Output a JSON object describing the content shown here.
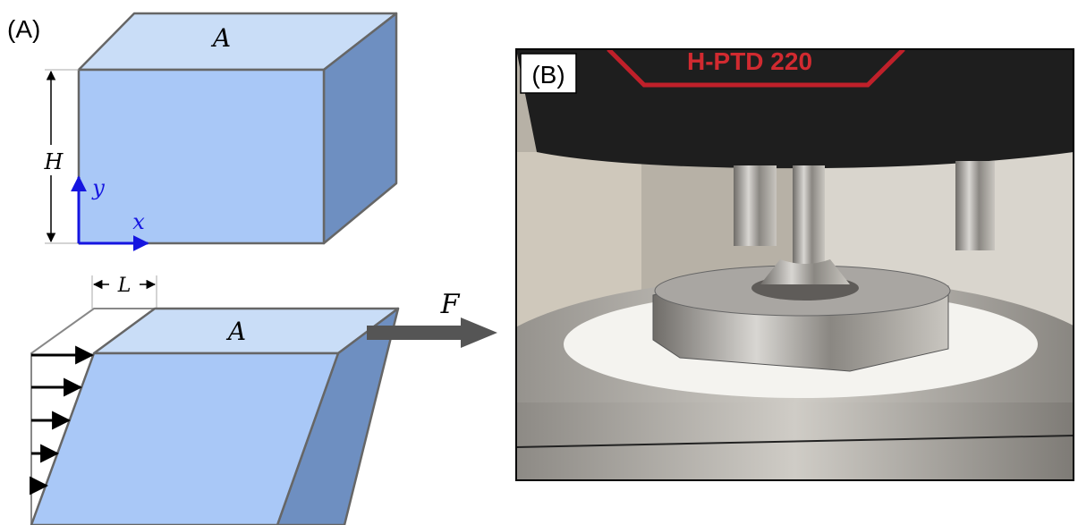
{
  "panel_a": {
    "label": "(A)",
    "top_face_label": "A",
    "height_label": "H",
    "y_axis_label": "y",
    "x_axis_label": "x",
    "shear_label": "L",
    "sheared_face_label": "A",
    "force_label": "F"
  },
  "panel_b": {
    "label": "(B)",
    "instrument_label": "H-PTD 220"
  }
}
